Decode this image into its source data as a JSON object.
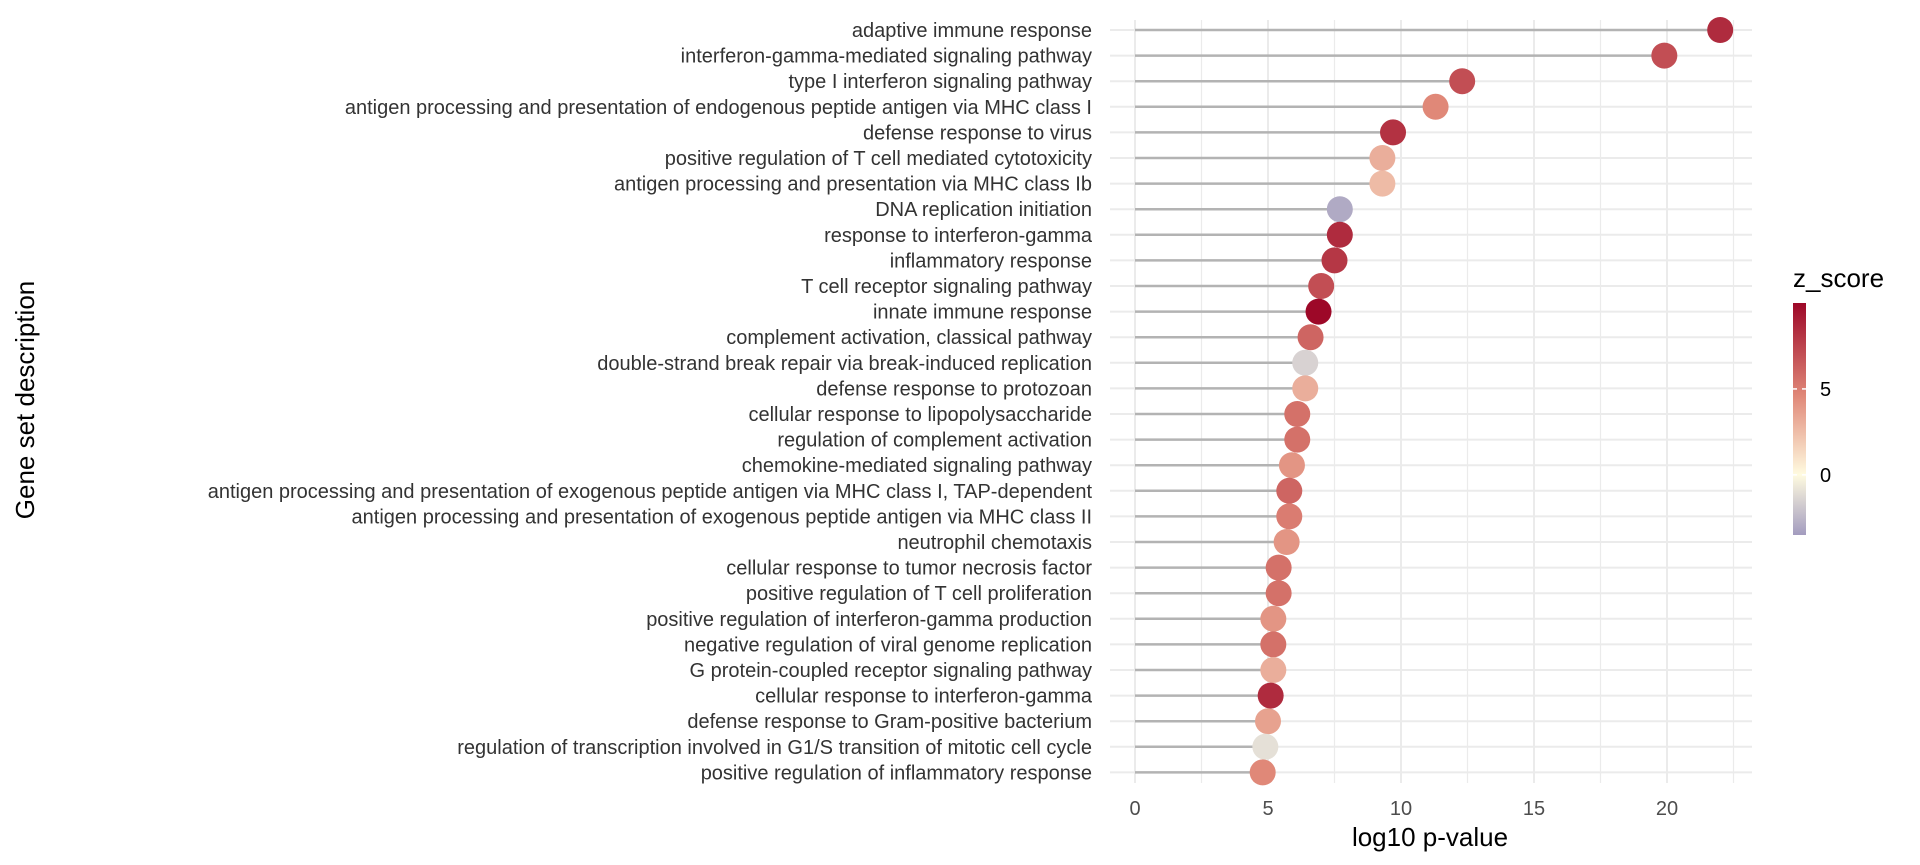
{
  "chart_data": {
    "type": "lollipop",
    "title": "",
    "xlabel": "log10 p-value",
    "ylabel": "Gene set description",
    "xlim": [
      -1.1,
      23.1
    ],
    "x_ticks": [
      0,
      5,
      10,
      15,
      20
    ],
    "x_tick_labels": [
      "0",
      "5",
      "10",
      "15",
      "20"
    ],
    "grid": true,
    "legend": {
      "title": "z_score",
      "position": "right",
      "ticks": [
        0,
        5
      ],
      "tick_labels": [
        "0",
        "5"
      ],
      "range": [
        -3.5,
        10
      ],
      "colors": {
        "low": "#a39cbf",
        "mid": "#fffbe0",
        "high": "#9d0828"
      }
    },
    "categories": [
      "adaptive immune response",
      "interferon-gamma-mediated signaling pathway",
      "type I interferon signaling pathway",
      "antigen processing and presentation of endogenous peptide antigen via MHC class I",
      "defense response to virus",
      "positive regulation of T cell mediated cytotoxicity",
      "antigen processing and presentation via MHC class Ib",
      "DNA replication initiation",
      "response to interferon-gamma",
      "inflammatory response",
      "T cell receptor signaling pathway",
      "innate immune response",
      "complement activation, classical pathway",
      "double-strand break repair via break-induced replication",
      "defense response to protozoan",
      "cellular response to lipopolysaccharide",
      "regulation of complement activation",
      "chemokine-mediated signaling pathway",
      "antigen processing and presentation of exogenous peptide antigen via MHC class I, TAP-dependent",
      "antigen processing and presentation of exogenous peptide antigen via MHC class II",
      "neutrophil chemotaxis",
      "cellular response to tumor necrosis factor",
      "positive regulation of T cell proliferation",
      "positive regulation of interferon-gamma production",
      "negative regulation of viral genome replication",
      "G protein-coupled receptor signaling pathway",
      "cellular response to interferon-gamma",
      "defense response to Gram-positive bacterium",
      "regulation of transcription involved in G1/S transition of mitotic cell cycle",
      "positive regulation of inflammatory response"
    ],
    "values": [
      22.0,
      19.9,
      12.3,
      11.3,
      9.7,
      9.3,
      9.3,
      7.7,
      7.7,
      7.5,
      7.0,
      6.9,
      6.6,
      6.4,
      6.4,
      6.1,
      6.1,
      5.9,
      5.8,
      5.8,
      5.7,
      5.4,
      5.4,
      5.2,
      5.2,
      5.2,
      5.1,
      5.0,
      4.9,
      4.8
    ],
    "z_scores": [
      8.5,
      7.0,
      7.0,
      4.5,
      8.2,
      3.0,
      2.5,
      -3.0,
      8.5,
      8.0,
      7.0,
      10.0,
      6.0,
      -1.5,
      3.0,
      5.5,
      5.5,
      4.0,
      6.0,
      5.0,
      4.0,
      5.5,
      5.5,
      4.0,
      5.5,
      3.0,
      8.5,
      3.5,
      -1.0,
      4.5
    ]
  }
}
